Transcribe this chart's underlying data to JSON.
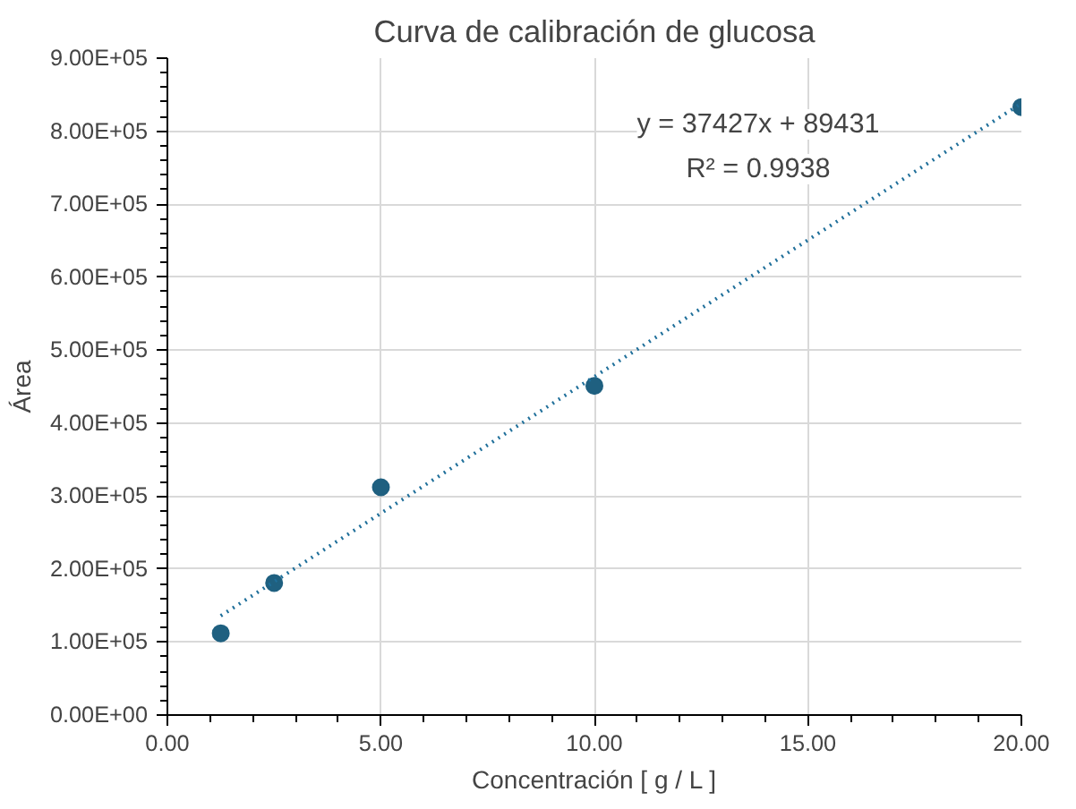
{
  "chart_data": {
    "type": "scatter",
    "title": "Curva de calibración de glucosa",
    "xlabel": "Concentración [ g / L ]",
    "ylabel": "Área",
    "series": [
      {
        "color": "#1f6080",
        "x": [
          1.25,
          2.5,
          5,
          10,
          20
        ],
        "values": [
          112000,
          181000,
          312000,
          451000,
          833000
        ]
      },
      {
        "type": "line",
        "color": "#1f6f9a",
        "line_style": "dotted",
        "marker": "none",
        "x": [
          1.25,
          20
        ],
        "values": [
          136000,
          838000
        ]
      }
    ],
    "annotations": [
      "y = 37427x + 89431",
      "R² = 0.9938"
    ],
    "marker": "circle",
    "grid": true,
    "xlim": [
      0,
      20
    ],
    "xticks": [
      {
        "value": 0,
        "label": "0.00"
      },
      {
        "value": 5,
        "label": "5.00"
      },
      {
        "value": 10,
        "label": "10.00"
      },
      {
        "value": 15,
        "label": "15.00"
      },
      {
        "value": 20,
        "label": "20.00"
      }
    ],
    "ylim": [
      0,
      900000
    ],
    "yticks": [
      {
        "value": 0,
        "label": "0.00E+00"
      },
      {
        "value": 100000,
        "label": "1.00E+05"
      },
      {
        "value": 200000,
        "label": "2.00E+05"
      },
      {
        "value": 300000,
        "label": "3.00E+05"
      },
      {
        "value": 400000,
        "label": "4.00E+05"
      },
      {
        "value": 500000,
        "label": "5.00E+05"
      },
      {
        "value": 600000,
        "label": "6.00E+05"
      },
      {
        "value": 700000,
        "label": "7.00E+05"
      },
      {
        "value": 800000,
        "label": "8.00E+05"
      },
      {
        "value": 900000,
        "label": "9.00E+05"
      }
    ]
  }
}
